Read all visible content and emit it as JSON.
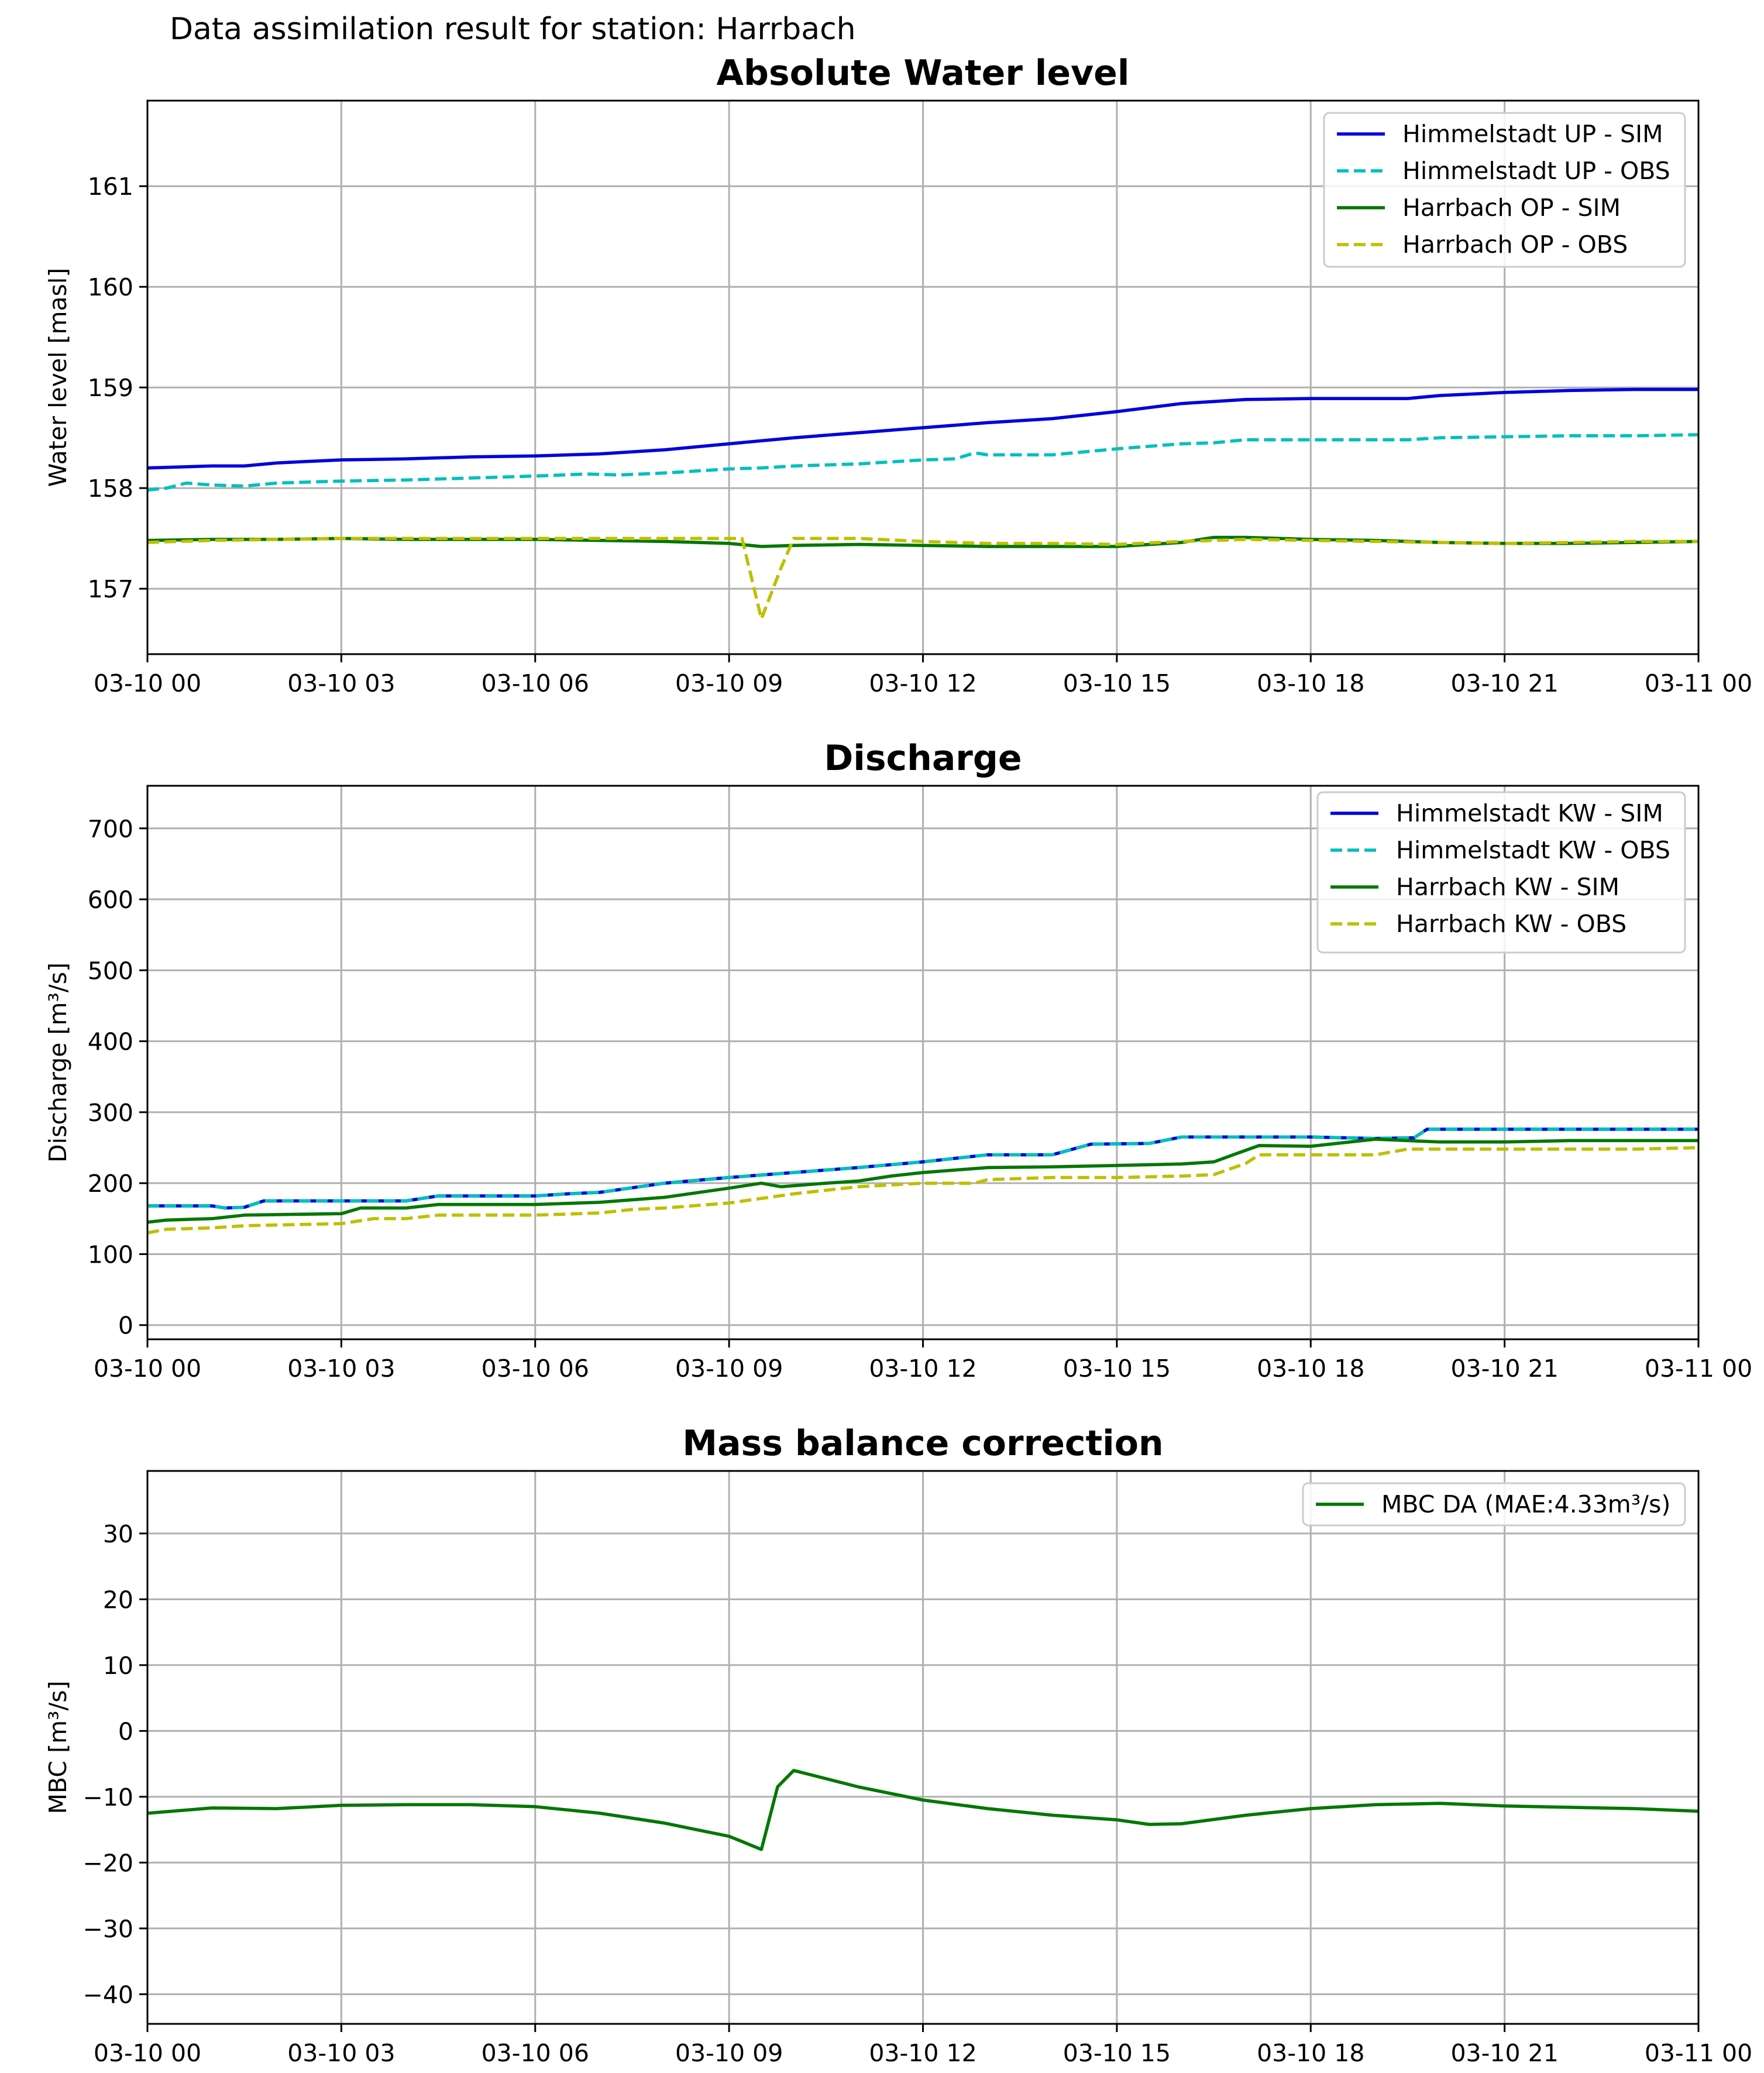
{
  "figure": {
    "suptitle": "Data assimilation result for station: Harrbach"
  },
  "chart_data": [
    {
      "type": "line",
      "title": "Absolute Water level",
      "xlabel": "",
      "ylabel": "Water level [masl]",
      "xlim_hours": [
        0,
        24
      ],
      "xticks": [
        "03-10 00",
        "03-10 03",
        "03-10 06",
        "03-10 09",
        "03-10 12",
        "03-10 15",
        "03-10 18",
        "03-10 21",
        "03-11 00"
      ],
      "ylim": [
        156.35,
        161.85
      ],
      "yticks": [
        {
          "value": 157,
          "label": "157"
        },
        {
          "value": 158,
          "label": "158"
        },
        {
          "value": 159,
          "label": "159"
        },
        {
          "value": 160,
          "label": "160"
        },
        {
          "value": 161,
          "label": "161"
        }
      ],
      "grid": true,
      "legend_position": "upper-right",
      "series": [
        {
          "name": "Himmelstadt UP - SIM",
          "color": "#0000dd",
          "dash": "solid",
          "x": [
            0,
            1,
            1.5,
            2,
            3,
            4,
            5,
            6,
            7,
            8,
            9,
            10,
            11,
            12,
            13,
            14,
            15,
            16,
            17,
            18,
            19,
            19.5,
            20,
            21,
            22,
            23,
            24
          ],
          "y": [
            158.2,
            158.22,
            158.22,
            158.25,
            158.28,
            158.29,
            158.31,
            158.32,
            158.34,
            158.38,
            158.44,
            158.5,
            158.55,
            158.6,
            158.65,
            158.69,
            158.76,
            158.84,
            158.88,
            158.89,
            158.89,
            158.89,
            158.92,
            158.95,
            158.97,
            158.98,
            158.98
          ]
        },
        {
          "name": "Himmelstadt UP - OBS",
          "color": "#00bfbf",
          "dash": "dashed",
          "x": [
            0,
            0.3,
            0.6,
            1,
            1.5,
            2,
            3,
            4,
            5,
            6,
            6.8,
            7.3,
            8,
            9,
            9.5,
            10,
            11,
            12,
            12.5,
            12.8,
            13,
            14,
            14.5,
            15,
            16,
            16.5,
            17,
            18,
            19,
            19.5,
            20,
            21,
            22,
            23,
            24
          ],
          "y": [
            157.98,
            158.0,
            158.05,
            158.03,
            158.02,
            158.05,
            158.07,
            158.08,
            158.1,
            158.12,
            158.14,
            158.13,
            158.15,
            158.19,
            158.2,
            158.22,
            158.24,
            158.28,
            158.29,
            158.35,
            158.33,
            158.33,
            158.36,
            158.39,
            158.44,
            158.45,
            158.48,
            158.48,
            158.48,
            158.48,
            158.5,
            158.51,
            158.52,
            158.52,
            158.53
          ]
        },
        {
          "name": "Harrbach OP - SIM",
          "color": "#007700",
          "dash": "solid",
          "x": [
            0,
            1,
            2,
            3,
            4,
            5,
            6,
            7,
            8,
            9,
            9.5,
            10,
            11,
            12,
            13,
            14,
            15,
            16,
            16.5,
            17,
            18,
            19,
            20,
            21,
            22,
            23,
            24
          ],
          "y": [
            157.48,
            157.49,
            157.49,
            157.5,
            157.49,
            157.49,
            157.49,
            157.48,
            157.47,
            157.45,
            157.42,
            157.43,
            157.44,
            157.43,
            157.42,
            157.42,
            157.42,
            157.46,
            157.51,
            157.51,
            157.49,
            157.48,
            157.46,
            157.45,
            157.45,
            157.46,
            157.47
          ]
        },
        {
          "name": "Harrbach OP - OBS",
          "color": "#bfbf00",
          "dash": "dashed",
          "x": [
            0,
            1,
            2,
            3,
            4,
            5,
            6,
            7,
            8,
            9,
            9.2,
            9.5,
            9.8,
            10,
            11,
            12,
            13,
            14,
            15,
            16,
            17,
            18,
            19,
            20,
            21,
            22,
            23,
            24
          ],
          "y": [
            157.46,
            157.48,
            157.49,
            157.5,
            157.5,
            157.5,
            157.5,
            157.5,
            157.5,
            157.5,
            157.5,
            156.7,
            157.2,
            157.5,
            157.5,
            157.47,
            157.45,
            157.45,
            157.44,
            157.47,
            157.49,
            157.48,
            157.47,
            157.46,
            157.45,
            157.46,
            157.47,
            157.47
          ]
        }
      ]
    },
    {
      "type": "line",
      "title": "Discharge",
      "xlabel": "",
      "ylabel": "Discharge [m³/s]",
      "xlim_hours": [
        0,
        24
      ],
      "xticks": [
        "03-10 00",
        "03-10 03",
        "03-10 06",
        "03-10 09",
        "03-10 12",
        "03-10 15",
        "03-10 18",
        "03-10 21",
        "03-11 00"
      ],
      "ylim": [
        -20,
        760
      ],
      "yticks": [
        {
          "value": 0,
          "label": "0"
        },
        {
          "value": 100,
          "label": "100"
        },
        {
          "value": 200,
          "label": "200"
        },
        {
          "value": 300,
          "label": "300"
        },
        {
          "value": 400,
          "label": "400"
        },
        {
          "value": 500,
          "label": "500"
        },
        {
          "value": 600,
          "label": "600"
        },
        {
          "value": 700,
          "label": "700"
        }
      ],
      "grid": true,
      "legend_position": "upper-right",
      "series": [
        {
          "name": "Himmelstadt KW - SIM",
          "color": "#0000dd",
          "dash": "solid",
          "x": [
            0,
            1,
            1.2,
            1.5,
            1.8,
            3,
            4,
            4.5,
            6,
            6.5,
            7,
            8,
            9,
            10,
            11,
            12,
            13,
            14,
            14.6,
            15.5,
            16,
            17,
            18,
            19,
            19.6,
            19.8,
            21,
            22,
            23,
            24
          ],
          "y": [
            168,
            168,
            165,
            166,
            175,
            175,
            175,
            182,
            182,
            185,
            187,
            200,
            208,
            215,
            222,
            230,
            240,
            240,
            255,
            256,
            265,
            265,
            265,
            263,
            264,
            276,
            276,
            276,
            276,
            276
          ]
        },
        {
          "name": "Himmelstadt KW - OBS",
          "color": "#00bfbf",
          "dash": "dashed",
          "x": [
            0,
            1,
            1.2,
            1.5,
            1.8,
            3,
            4,
            4.5,
            6,
            6.5,
            7,
            8,
            9,
            10,
            11,
            12,
            13,
            14,
            14.6,
            15.5,
            16,
            17,
            18,
            19,
            19.6,
            19.8,
            21,
            22,
            23,
            24
          ],
          "y": [
            168,
            168,
            165,
            166,
            175,
            175,
            175,
            182,
            182,
            185,
            187,
            200,
            208,
            215,
            222,
            230,
            240,
            240,
            255,
            256,
            265,
            265,
            265,
            263,
            264,
            276,
            276,
            276,
            276,
            276
          ]
        },
        {
          "name": "Harrbach KW - SIM",
          "color": "#007700",
          "dash": "solid",
          "x": [
            0,
            0.3,
            1,
            1.5,
            3,
            3.3,
            4,
            4.5,
            6,
            7,
            8,
            9,
            9.5,
            9.8,
            10.5,
            11,
            11.5,
            12,
            13,
            14,
            15,
            16,
            16.5,
            16.8,
            17.2,
            18,
            19,
            20,
            21,
            22,
            23,
            24
          ],
          "y": [
            145,
            148,
            150,
            155,
            157,
            165,
            165,
            170,
            170,
            173,
            180,
            193,
            200,
            195,
            200,
            203,
            210,
            215,
            222,
            223,
            225,
            227,
            230,
            240,
            253,
            252,
            262,
            258,
            258,
            260,
            260,
            260
          ]
        },
        {
          "name": "Harrbach KW - OBS",
          "color": "#bfbf00",
          "dash": "dashed",
          "x": [
            0,
            0.3,
            1,
            1.5,
            3,
            3.5,
            4,
            4.5,
            6,
            7,
            7.5,
            8,
            9,
            10,
            11,
            12,
            12.8,
            13,
            14,
            15,
            16,
            16.5,
            17,
            17.2,
            18,
            19,
            19.5,
            20,
            21,
            22,
            23,
            24
          ],
          "y": [
            130,
            135,
            137,
            140,
            143,
            150,
            150,
            155,
            155,
            158,
            163,
            165,
            172,
            185,
            195,
            200,
            200,
            205,
            208,
            208,
            210,
            212,
            228,
            240,
            240,
            240,
            248,
            248,
            248,
            248,
            248,
            250
          ]
        }
      ]
    },
    {
      "type": "line",
      "title": "Mass balance correction",
      "xlabel": "",
      "ylabel": "MBC [m³/s]",
      "xlim_hours": [
        0,
        24
      ],
      "xticks": [
        "03-10 00",
        "03-10 03",
        "03-10 06",
        "03-10 09",
        "03-10 12",
        "03-10 15",
        "03-10 18",
        "03-10 21",
        "03-11 00"
      ],
      "ylim": [
        -44.5,
        39.5
      ],
      "yticks": [
        {
          "value": -40,
          "label": "−40"
        },
        {
          "value": -30,
          "label": "−30"
        },
        {
          "value": -20,
          "label": "−20"
        },
        {
          "value": -10,
          "label": "−10"
        },
        {
          "value": 0,
          "label": "0"
        },
        {
          "value": 10,
          "label": "10"
        },
        {
          "value": 20,
          "label": "20"
        },
        {
          "value": 30,
          "label": "30"
        }
      ],
      "grid": true,
      "legend_position": "upper-right",
      "series": [
        {
          "name": "MBC DA (MAE:4.33m³/s)",
          "color": "#007700",
          "dash": "solid",
          "x": [
            0,
            1,
            2,
            3,
            4,
            5,
            6,
            7,
            8,
            9,
            9.5,
            9.75,
            10,
            11,
            12,
            13,
            14,
            15,
            15.5,
            16,
            17,
            18,
            19,
            20,
            21,
            22,
            23,
            24
          ],
          "y": [
            -12.5,
            -11.7,
            -11.8,
            -11.3,
            -11.2,
            -11.2,
            -11.5,
            -12.5,
            -14,
            -16,
            -18,
            -8.5,
            -6,
            -8.5,
            -10.5,
            -11.8,
            -12.8,
            -13.5,
            -14.2,
            -14.1,
            -12.8,
            -11.8,
            -11.2,
            -11,
            -11.4,
            -11.6,
            -11.8,
            -12.2
          ]
        }
      ]
    }
  ]
}
